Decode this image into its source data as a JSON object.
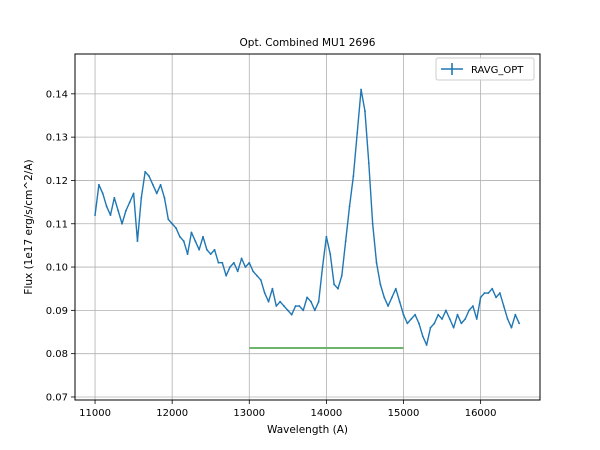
{
  "chart_data": {
    "type": "line",
    "title": "Opt. Combined MU1 2696",
    "xlabel": "Wavelength (A)",
    "ylabel": "Flux (1e17 erg/s/cm^2/A)",
    "xlim": [
      10740,
      16770
    ],
    "ylim": [
      0.0693,
      0.1492
    ],
    "xticks": [
      11000,
      12000,
      13000,
      14000,
      15000,
      16000
    ],
    "yticks": [
      0.07,
      0.08,
      0.09,
      0.1,
      0.11,
      0.12,
      0.13,
      0.14
    ],
    "xtick_labels": [
      "11000",
      "12000",
      "13000",
      "14000",
      "15000",
      "16000"
    ],
    "ytick_labels": [
      "0.07",
      "0.08",
      "0.09",
      "0.10",
      "0.11",
      "0.12",
      "0.13",
      "0.14"
    ],
    "grid": true,
    "legend_position": "top-right",
    "series": [
      {
        "name": "RAVG_OPT",
        "color": "#1f77b4",
        "style": "errorbar-line",
        "x": [
          11000,
          11050,
          11100,
          11150,
          11200,
          11250,
          11300,
          11350,
          11400,
          11450,
          11500,
          11550,
          11600,
          11650,
          11700,
          11750,
          11800,
          11850,
          11900,
          11950,
          12000,
          12050,
          12100,
          12150,
          12200,
          12250,
          12300,
          12350,
          12400,
          12450,
          12500,
          12550,
          12600,
          12650,
          12700,
          12750,
          12800,
          12850,
          12900,
          12950,
          13000,
          13050,
          13100,
          13150,
          13200,
          13250,
          13300,
          13350,
          13400,
          13450,
          13500,
          13550,
          13600,
          13650,
          13700,
          13750,
          13800,
          13850,
          13900,
          13950,
          14000,
          14050,
          14100,
          14150,
          14200,
          14250,
          14300,
          14350,
          14400,
          14450,
          14500,
          14550,
          14600,
          14650,
          14700,
          14750,
          14800,
          14850,
          14900,
          14950,
          15000,
          15050,
          15100,
          15150,
          15200,
          15250,
          15300,
          15350,
          15400,
          15450,
          15500,
          15550,
          15600,
          15650,
          15700,
          15750,
          15800,
          15850,
          15900,
          15950,
          16000,
          16050,
          16100,
          16150,
          16200,
          16250,
          16300,
          16350,
          16400,
          16450,
          16500
        ],
        "y": [
          0.112,
          0.119,
          0.117,
          0.114,
          0.112,
          0.116,
          0.113,
          0.11,
          0.113,
          0.115,
          0.117,
          0.106,
          0.116,
          0.122,
          0.121,
          0.119,
          0.117,
          0.119,
          0.116,
          0.111,
          0.11,
          0.109,
          0.107,
          0.106,
          0.103,
          0.108,
          0.106,
          0.104,
          0.107,
          0.104,
          0.103,
          0.104,
          0.101,
          0.101,
          0.098,
          0.1,
          0.101,
          0.099,
          0.102,
          0.1,
          0.101,
          0.099,
          0.098,
          0.097,
          0.094,
          0.092,
          0.095,
          0.091,
          0.092,
          0.091,
          0.09,
          0.089,
          0.091,
          0.091,
          0.09,
          0.093,
          0.092,
          0.09,
          0.092,
          0.1,
          0.107,
          0.103,
          0.096,
          0.095,
          0.098,
          0.106,
          0.114,
          0.121,
          0.131,
          0.141,
          0.136,
          0.124,
          0.11,
          0.101,
          0.096,
          0.093,
          0.091,
          0.093,
          0.095,
          0.092,
          0.089,
          0.087,
          0.088,
          0.089,
          0.087,
          0.084,
          0.082,
          0.086,
          0.087,
          0.089,
          0.088,
          0.09,
          0.088,
          0.086,
          0.089,
          0.087,
          0.088,
          0.09,
          0.091,
          0.088,
          0.093,
          0.094,
          0.094,
          0.095,
          0.093,
          0.094,
          0.091,
          0.088,
          0.086,
          0.089,
          0.087
        ]
      },
      {
        "name": "",
        "color": "#6db56d",
        "style": "line",
        "x": [
          13000,
          15000
        ],
        "y": [
          0.0813,
          0.0813
        ]
      }
    ]
  }
}
